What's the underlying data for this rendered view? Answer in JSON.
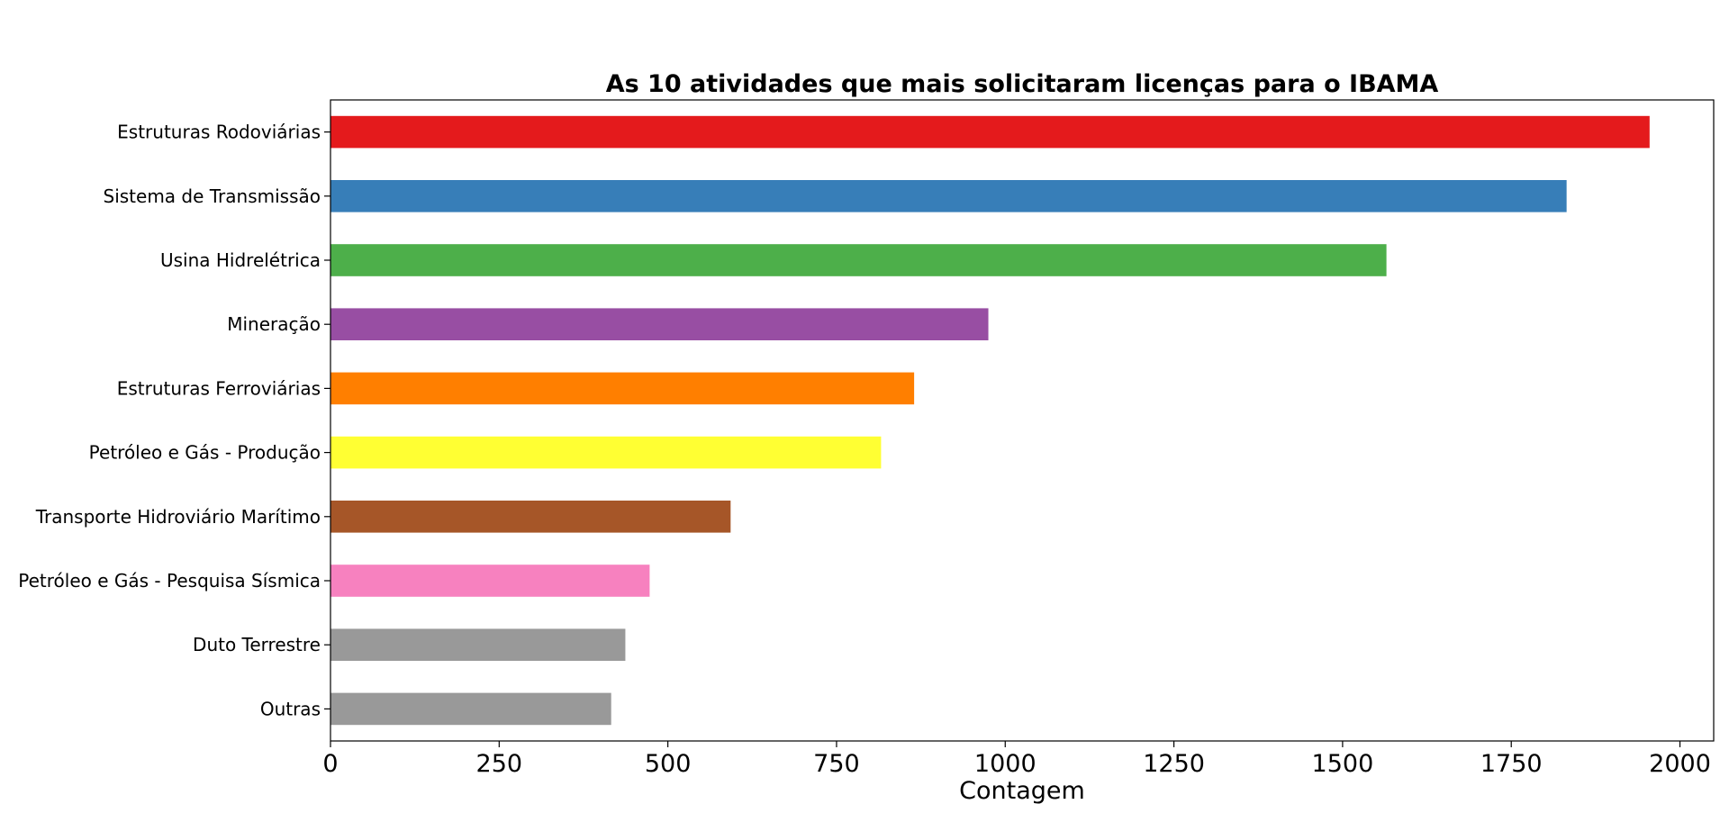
{
  "chart_data": {
    "type": "bar",
    "orientation": "horizontal",
    "title": "As 10 atividades que mais solicitaram licenças para o IBAMA",
    "xlabel": "Contagem",
    "xlim": [
      0,
      2050
    ],
    "xticks": [
      0,
      250,
      500,
      750,
      1000,
      1250,
      1500,
      1750,
      2000
    ],
    "xtick_labels": [
      "0",
      "250",
      "500",
      "750",
      "1000",
      "1250",
      "1500",
      "1750",
      "2000"
    ],
    "grid": false,
    "legend": "none",
    "categories": [
      "Estruturas Rodoviárias",
      "Sistema de Transmissão",
      "Usina Hidrelétrica",
      "Mineração",
      "Estruturas Ferroviárias",
      "Petróleo e Gás - Produção",
      "Transporte Hidroviário Marítimo",
      "Petróleo e Gás - Pesquisa Sísmica",
      "Duto Terrestre",
      "Outras"
    ],
    "values": [
      1955,
      1832,
      1565,
      975,
      865,
      816,
      593,
      473,
      437,
      416
    ],
    "colors": [
      "#e41a1c",
      "#377eb8",
      "#4daf4a",
      "#984ea3",
      "#ff7f00",
      "#ffff33",
      "#a65628",
      "#f781bf",
      "#999999",
      "#999999"
    ]
  }
}
